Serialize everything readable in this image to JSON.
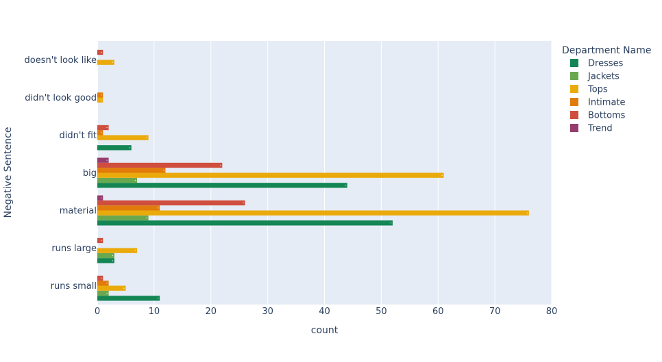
{
  "chart_data": {
    "type": "bar",
    "orientation": "horizontal",
    "barmode": "group",
    "xlabel": "count",
    "ylabel": "Negative Sentence",
    "xlim": [
      0,
      80
    ],
    "xticks": [
      0,
      10,
      20,
      30,
      40,
      50,
      60,
      70,
      80
    ],
    "grid": true,
    "legend_title": "Department Name",
    "legend_position": "right",
    "categories": [
      "doesn't look like",
      "didn't look good",
      "didn't fit",
      "big",
      "material",
      "runs large",
      "runs small"
    ],
    "series": [
      {
        "name": "Dresses",
        "color": "#138654",
        "values": [
          null,
          null,
          6,
          44,
          52,
          3,
          11
        ]
      },
      {
        "name": "Jackets",
        "color": "#6aa84f",
        "values": [
          null,
          null,
          null,
          7,
          9,
          3,
          2
        ]
      },
      {
        "name": "Tops",
        "color": "#eaaa0c",
        "values": [
          3,
          1,
          9,
          61,
          76,
          7,
          5
        ]
      },
      {
        "name": "Intimate",
        "color": "#e07b0c",
        "values": [
          null,
          1,
          1,
          12,
          11,
          null,
          2
        ]
      },
      {
        "name": "Bottoms",
        "color": "#cf4e3e",
        "values": [
          1,
          null,
          2,
          22,
          26,
          1,
          1
        ]
      },
      {
        "name": "Trend",
        "color": "#963c6e",
        "values": [
          null,
          null,
          null,
          2,
          1,
          null,
          null
        ]
      }
    ]
  }
}
